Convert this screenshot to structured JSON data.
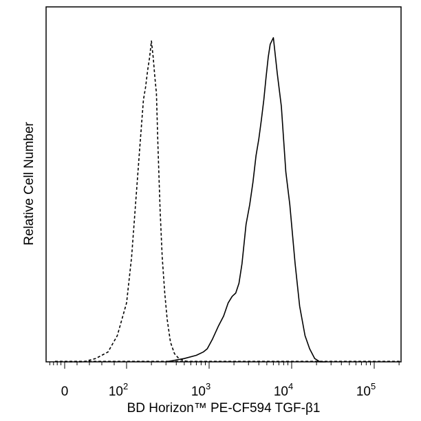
{
  "chart_data": {
    "type": "line",
    "title": "",
    "xlabel": "BD Horizon™ PE-CF594  TGF-β1",
    "ylabel": "Relative Cell Number",
    "x_scale": "biexponential (linear near 0, logarithmic above ~10^2)",
    "xlim": [
      -100,
      262144
    ],
    "ylim": [
      0,
      1
    ],
    "grid": false,
    "legend": "none",
    "x_ticks": [
      {
        "value": 0,
        "base": "0",
        "exp": ""
      },
      {
        "value": 100,
        "base": "10",
        "exp": "2"
      },
      {
        "value": 1000,
        "base": "10",
        "exp": "3"
      },
      {
        "value": 10000,
        "base": "10",
        "exp": "4"
      },
      {
        "value": 100000,
        "base": "10",
        "exp": "5"
      }
    ],
    "series": [
      {
        "style": "dashed",
        "color": "#000000",
        "x": [
          0,
          30,
          50,
          70,
          85,
          100,
          115,
          130,
          145,
          160,
          170,
          180,
          190,
          200,
          210,
          220,
          230,
          240,
          255,
          270,
          290,
          310,
          340,
          380,
          430,
          500,
          600
        ],
        "y": [
          0,
          0.0,
          0.01,
          0.03,
          0.08,
          0.18,
          0.32,
          0.5,
          0.66,
          0.8,
          0.84,
          0.89,
          0.93,
          0.98,
          0.93,
          0.87,
          0.82,
          0.66,
          0.46,
          0.32,
          0.21,
          0.13,
          0.06,
          0.025,
          0.01,
          0.003,
          0
        ]
      },
      {
        "style": "solid",
        "color": "#000000",
        "x": [
          300,
          500,
          700,
          850,
          950,
          1100,
          1300,
          1500,
          1700,
          1900,
          2100,
          2300,
          2500,
          2800,
          3100,
          3400,
          3700,
          4000,
          4300,
          4600,
          4900,
          5200,
          5500,
          6000,
          6700,
          7500,
          8500,
          9500,
          11000,
          12500,
          14500,
          16500,
          19000,
          22000,
          26000
        ],
        "y": [
          0,
          0.01,
          0.02,
          0.03,
          0.04,
          0.07,
          0.11,
          0.14,
          0.18,
          0.2,
          0.21,
          0.24,
          0.3,
          0.42,
          0.48,
          0.55,
          0.63,
          0.68,
          0.74,
          0.8,
          0.87,
          0.93,
          0.97,
          0.99,
          0.88,
          0.78,
          0.58,
          0.48,
          0.3,
          0.17,
          0.08,
          0.04,
          0.01,
          0.0,
          0
        ]
      }
    ]
  }
}
